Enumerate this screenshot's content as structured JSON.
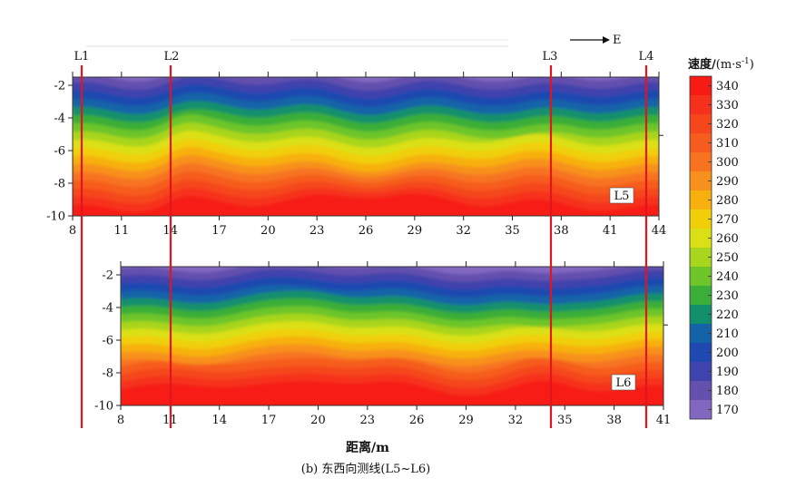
{
  "chart_data": {
    "type": "heatmap",
    "caption": "(b) 东西向测线(L5~L6)",
    "xlabel": "距离/m",
    "direction_label": "E",
    "colorbar": {
      "title_main": "速度/",
      "title_unit": "(m·s",
      "title_sup": "-1",
      "title_close": ")",
      "range": [
        170,
        340
      ],
      "ticks": [
        "340",
        "330",
        "320",
        "310",
        "300",
        "290",
        "280",
        "270",
        "260",
        "250",
        "240",
        "230",
        "220",
        "210",
        "200",
        "190",
        "180",
        "170"
      ],
      "colors": [
        "#f71b16",
        "#f6301a",
        "#f5461c",
        "#f65c1e",
        "#f77320",
        "#f8901e",
        "#f7b00d",
        "#f0cf08",
        "#dbe016",
        "#a8d51e",
        "#6dc52a",
        "#3aae38",
        "#12906c",
        "#1463a8",
        "#1f48b0",
        "#3f43ad",
        "#6450ad",
        "#8267c1"
      ]
    },
    "panels": [
      {
        "label": "L5",
        "x_range": [
          8,
          44
        ],
        "y_range": [
          -10,
          -1.5
        ],
        "x_ticks": [
          "8",
          "11",
          "14",
          "17",
          "20",
          "23",
          "26",
          "29",
          "32",
          "35",
          "38",
          "41",
          "44"
        ],
        "y_ticks": [
          "-2",
          "-4",
          "-6",
          "-8",
          "-10"
        ],
        "y_tick_values": [
          -2,
          -4,
          -6,
          -8,
          -10
        ],
        "x_tick_values": [
          8,
          11,
          14,
          17,
          20,
          23,
          26,
          29,
          32,
          35,
          38,
          41,
          44
        ]
      },
      {
        "label": "L6",
        "x_range": [
          8,
          41
        ],
        "y_range": [
          -10,
          -1.5
        ],
        "x_ticks": [
          "8",
          "11",
          "14",
          "17",
          "20",
          "23",
          "26",
          "29",
          "32",
          "35",
          "38",
          "41"
        ],
        "y_ticks": [
          "-2",
          "-4",
          "-6",
          "-8",
          "-10"
        ],
        "y_tick_values": [
          -2,
          -4,
          -6,
          -8,
          -10
        ],
        "x_tick_values": [
          8,
          11,
          14,
          17,
          20,
          23,
          26,
          29,
          32,
          35,
          38,
          41
        ]
      }
    ],
    "survey_lines": [
      "L1",
      "L2",
      "L3",
      "L4"
    ],
    "survey_line_color": "#e2141e"
  }
}
